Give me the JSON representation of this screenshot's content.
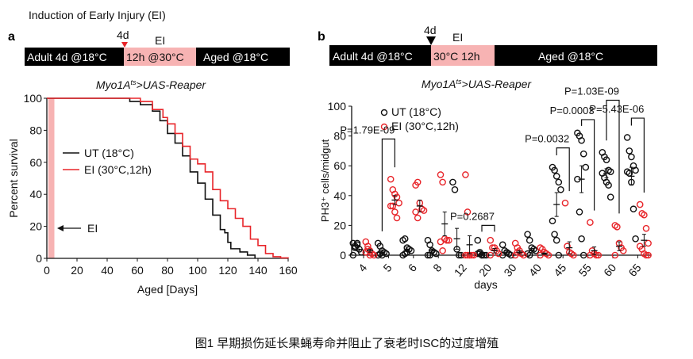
{
  "caption": "图1 早期损伤延长果蝇寿命并阻止了衰老时ISC的过度增殖",
  "colors": {
    "ut": "#111111",
    "ei": "#e8252a",
    "ei_band": "#f7b3b3"
  },
  "panel_a": {
    "letter": "a",
    "title": "Induction of Early Injury (EI)",
    "timeline": {
      "marker": "4d",
      "marker_label": "EI",
      "seg1": "Adult 4d @18°C",
      "seg2": "12h @30°C",
      "seg3": "Aged @18°C"
    },
    "genotype": {
      "main": "Myo1A",
      "sup": "ts",
      "rest": ">UAS-Reaper"
    },
    "arrow_label": "EI"
  },
  "panel_b": {
    "letter": "b",
    "timeline": {
      "marker": "4d",
      "marker_label": "EI",
      "seg1": "Adult 4d @18°C",
      "seg2": "30°C 12h",
      "seg3": "Aged @18°C"
    },
    "genotype": {
      "main": "Myo1A",
      "sup": "ts",
      "rest": ">UAS-Reaper"
    }
  },
  "chart_data": [
    {
      "type": "line",
      "title": "",
      "xlabel": "Aged [Days]",
      "ylabel": "Percent survival",
      "xlim": [
        0,
        160
      ],
      "ylim": [
        0,
        100
      ],
      "xticks": [
        "0",
        "20",
        "40",
        "60",
        "80",
        "100",
        "120",
        "140",
        "160"
      ],
      "yticks": [
        "0",
        "20",
        "40",
        "60",
        "80",
        "100"
      ],
      "shaded_interval": [
        1,
        5
      ],
      "legend_position": "center-left",
      "series": [
        {
          "name": "UT (18°C)",
          "color": "#111111",
          "x": [
            0,
            45,
            55,
            62,
            70,
            75,
            80,
            85,
            90,
            95,
            100,
            105,
            110,
            115,
            118,
            120,
            122,
            128,
            133,
            138
          ],
          "y": [
            100,
            100,
            98,
            96,
            92,
            86,
            78,
            72,
            64,
            54,
            47,
            37,
            27,
            18,
            16,
            10,
            6,
            4,
            2,
            0
          ]
        },
        {
          "name": "EI (30°C,12h)",
          "color": "#e8252a",
          "x": [
            0,
            57,
            62,
            70,
            77,
            80,
            85,
            90,
            95,
            100,
            105,
            110,
            115,
            120,
            125,
            130,
            135,
            140,
            145,
            150,
            155,
            160
          ],
          "y": [
            100,
            100,
            98,
            93,
            88,
            84,
            78,
            70,
            62,
            59,
            54,
            43,
            36,
            31,
            25,
            20,
            12,
            8,
            3,
            1,
            0.3,
            0
          ]
        }
      ]
    },
    {
      "type": "scatter",
      "title": "",
      "xlabel": "days",
      "ylabel": "PH3⁺ cells/midgut",
      "ylim": [
        0,
        100
      ],
      "yticks": [
        "0",
        "20",
        "40",
        "60",
        "80",
        "100"
      ],
      "categories": [
        "4",
        "5",
        "6",
        "8",
        "12",
        "20",
        "30",
        "40",
        "45",
        "55",
        "60",
        "65"
      ],
      "legend_position": "top-left",
      "series": [
        {
          "name": "UT (18°C)",
          "color": "#111111",
          "values": [
            [
              8,
              6,
              7,
              4,
              2,
              0,
              5,
              8
            ],
            [
              8,
              6,
              3,
              2,
              1,
              0,
              1,
              0
            ],
            [
              10,
              11,
              5,
              4,
              3,
              0,
              1,
              2
            ],
            [
              10,
              7,
              3,
              2,
              1,
              0,
              0
            ],
            [
              49,
              44,
              4,
              0,
              0
            ],
            [
              10,
              1,
              0,
              0,
              0,
              1,
              2,
              0
            ],
            [
              7,
              3,
              2,
              1,
              0,
              0
            ],
            [
              14,
              10,
              5,
              4,
              3,
              1,
              0
            ],
            [
              59,
              57,
              53,
              49,
              44,
              23,
              14,
              10,
              0
            ],
            [
              82,
              80,
              77,
              68,
              59,
              51,
              29,
              11,
              0
            ],
            [
              69,
              66,
              64,
              57,
              56,
              55,
              52,
              49,
              47,
              39
            ],
            [
              79,
              70,
              66,
              60,
              57,
              56,
              55,
              49,
              31,
              11
            ]
          ],
          "mean": [
            4,
            2,
            4,
            3,
            11,
            1,
            2,
            3,
            34,
            51,
            55,
            53
          ],
          "sem": [
            1,
            1,
            1.5,
            1,
            7,
            1,
            1,
            1.5,
            8,
            9,
            3,
            6
          ]
        },
        {
          "name": "EI (30°C,12h)",
          "color": "#e8252a",
          "values": [
            [
              9,
              6,
              3,
              1,
              0,
              2,
              4,
              0
            ],
            [
              51,
              44,
              41,
              39,
              35,
              33,
              33,
              29,
              25
            ],
            [
              47,
              49,
              35,
              31,
              30,
              29,
              25
            ],
            [
              54,
              49,
              11,
              10,
              10,
              9,
              3
            ],
            [
              54,
              29,
              0,
              0,
              0,
              0,
              0,
              0
            ],
            [
              10,
              5,
              5,
              3,
              1,
              0
            ],
            [
              8,
              5,
              3,
              1,
              0,
              0,
              2
            ],
            [
              5,
              4,
              2,
              1,
              0,
              0
            ],
            [
              35,
              6,
              2,
              1,
              0
            ],
            [
              22,
              3,
              1,
              0,
              0,
              0
            ],
            [
              20,
              19,
              8,
              5,
              3,
              0
            ],
            [
              34,
              28,
              27,
              18,
              8,
              6,
              4,
              1,
              0,
              0
            ]
          ],
          "mean": [
            3,
            37,
            33,
            21,
            7,
            3,
            2,
            1,
            5,
            3,
            6,
            10
          ],
          "sem": [
            1,
            3,
            4,
            8,
            6,
            1.5,
            1,
            0.5,
            4,
            2.5,
            3,
            4
          ]
        }
      ],
      "comparisons": [
        {
          "category": "5",
          "label": "P=1.79E-09",
          "bracket_top": 78
        },
        {
          "category": "20",
          "label": "P=0.2687",
          "bracket_top": 20
        },
        {
          "category": "45",
          "label": "P=0.0032",
          "bracket_top": 72
        },
        {
          "category": "55",
          "label": "P=0.0003",
          "bracket_top": 91
        },
        {
          "category": "60",
          "label": "P=1.03E-09",
          "bracket_top": 104
        },
        {
          "category": "65",
          "label": "P=5.43E-06",
          "bracket_top": 92
        }
      ]
    }
  ]
}
